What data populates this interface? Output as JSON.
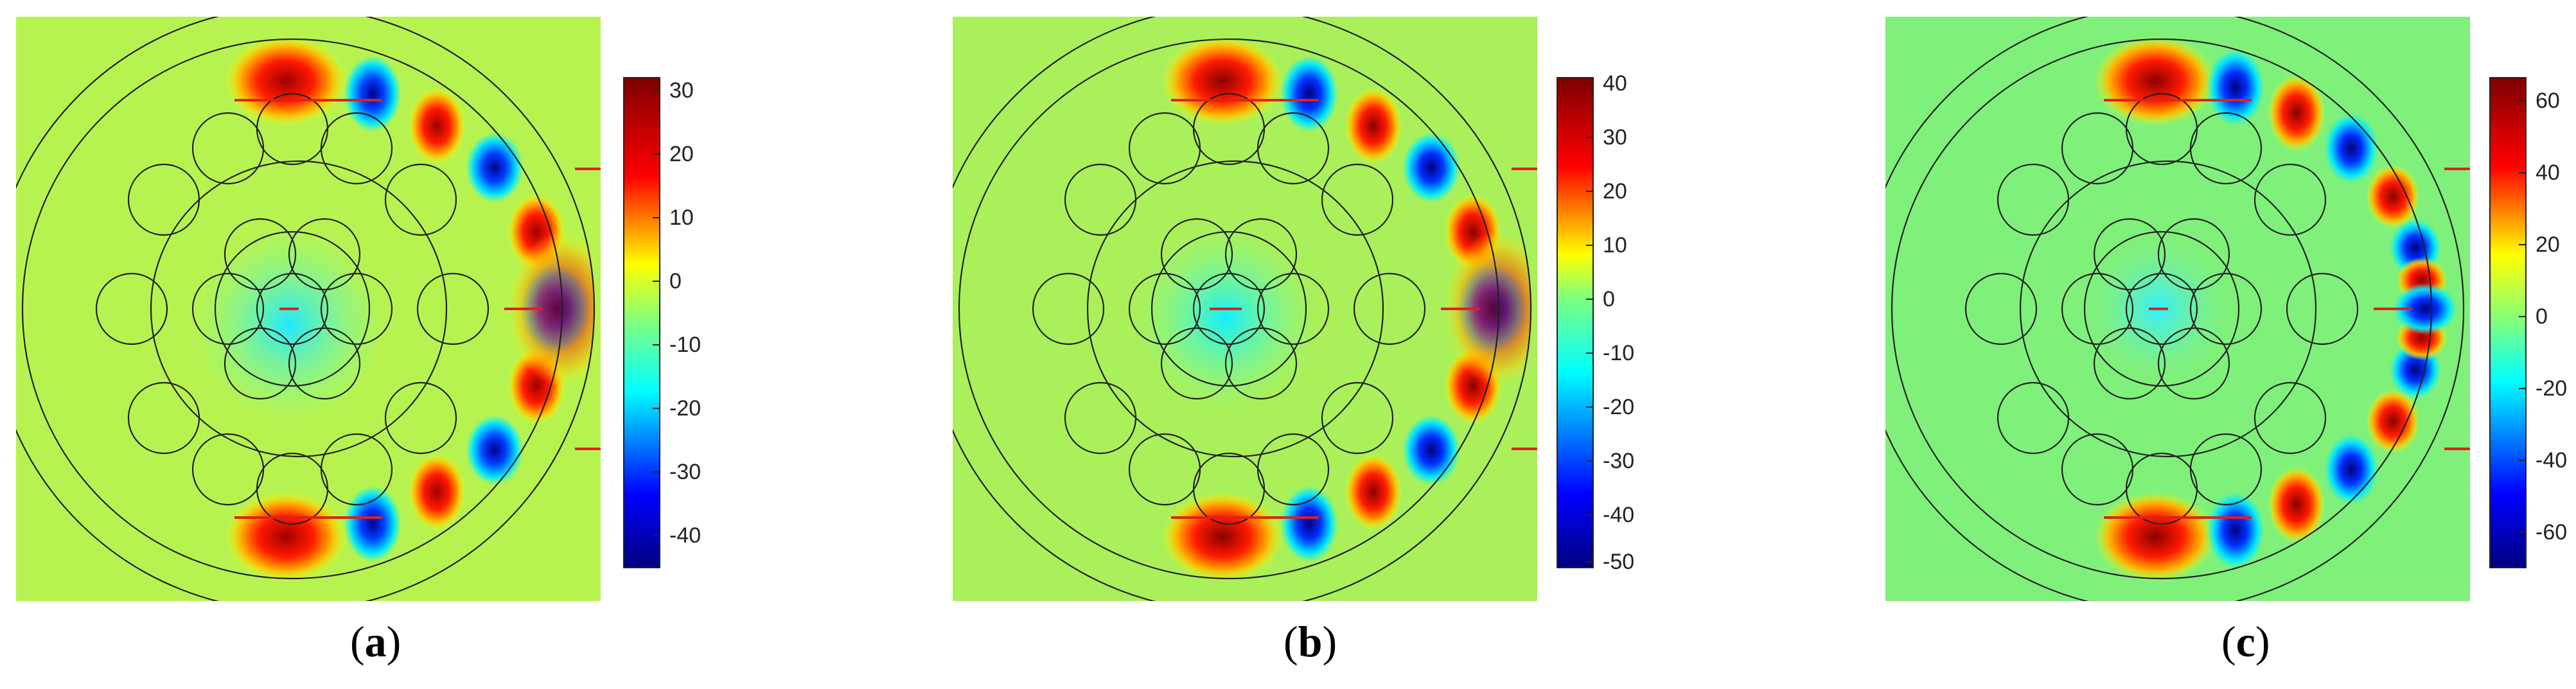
{
  "panels": [
    {
      "caption_open": "(",
      "caption_letter": "a",
      "caption_close": ")",
      "colorbar_ticks": [
        "30",
        "20",
        "10",
        "0",
        "-10",
        "-20",
        "-30",
        "-40"
      ],
      "background_color": "#b7f350"
    },
    {
      "caption_open": "(",
      "caption_letter": "b",
      "caption_close": ")",
      "colorbar_ticks": [
        "40",
        "30",
        "20",
        "10",
        "0",
        "-10",
        "-20",
        "-30",
        "-40",
        "-50"
      ],
      "background_color": "#a9f05a"
    },
    {
      "caption_open": "(",
      "caption_letter": "c",
      "caption_close": ")",
      "colorbar_ticks": [
        "60",
        "40",
        "20",
        "0",
        "-20",
        "-40",
        "-60"
      ],
      "background_color": "#7ff07a"
    }
  ],
  "colormap": [
    "#00007f",
    "#0000ff",
    "#00ffff",
    "#7fff7f",
    "#ffff00",
    "#ff0000",
    "#7f0000"
  ]
}
